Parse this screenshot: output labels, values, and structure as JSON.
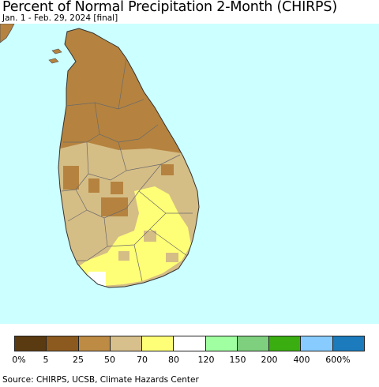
{
  "title": "Percent of Normal Precipitation 2-Month (CHIRPS)",
  "subtitle": "Jan. 1 - Feb. 29, 2024 [final]",
  "source": "Source: CHIRPS, UCSB, Climate Hazards Center",
  "colors": {
    "ocean": "#ccffff",
    "border": "#555555",
    "dry_dark": "#b5833f",
    "dry_mid": "#d5bd86",
    "near_normal": "#ffff77",
    "normal": "#ffffff"
  },
  "legend": {
    "colors": [
      "#5a3a10",
      "#8c5a1e",
      "#be8b45",
      "#d8c08c",
      "#ffff77",
      "#ffffff",
      "#a0ffa0",
      "#7ed07e",
      "#3aad10",
      "#88ccff",
      "#1b7bbd"
    ],
    "tick_labels": [
      "0%",
      "5",
      "25",
      "50",
      "70",
      "80",
      "120",
      "150",
      "200",
      "400",
      "600%"
    ]
  }
}
